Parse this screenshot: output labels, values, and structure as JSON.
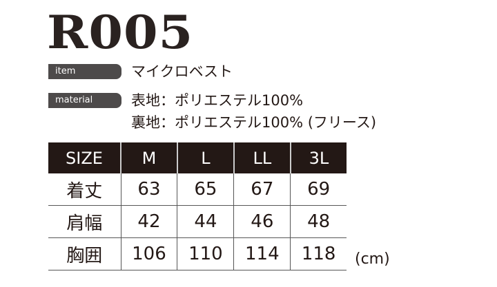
{
  "title": "R005",
  "item": {
    "label": "item",
    "value": "マイクロベスト"
  },
  "material": {
    "label": "material",
    "lines": [
      "表地：ポリエステル100%",
      "裏地：ポリエステル100% (フリース)"
    ]
  },
  "table": {
    "headers": [
      "SIZE",
      "M",
      "L",
      "LL",
      "3L"
    ],
    "rows": [
      [
        "着丈",
        "63",
        "65",
        "67",
        "69"
      ],
      [
        "肩幅",
        "42",
        "44",
        "46",
        "48"
      ],
      [
        "胸囲",
        "106",
        "110",
        "114",
        "118"
      ]
    ]
  },
  "unit": "(cm)",
  "colors": {
    "text": "#231815",
    "label_bg": "#4d4a4a",
    "header_bg": "#231815"
  }
}
